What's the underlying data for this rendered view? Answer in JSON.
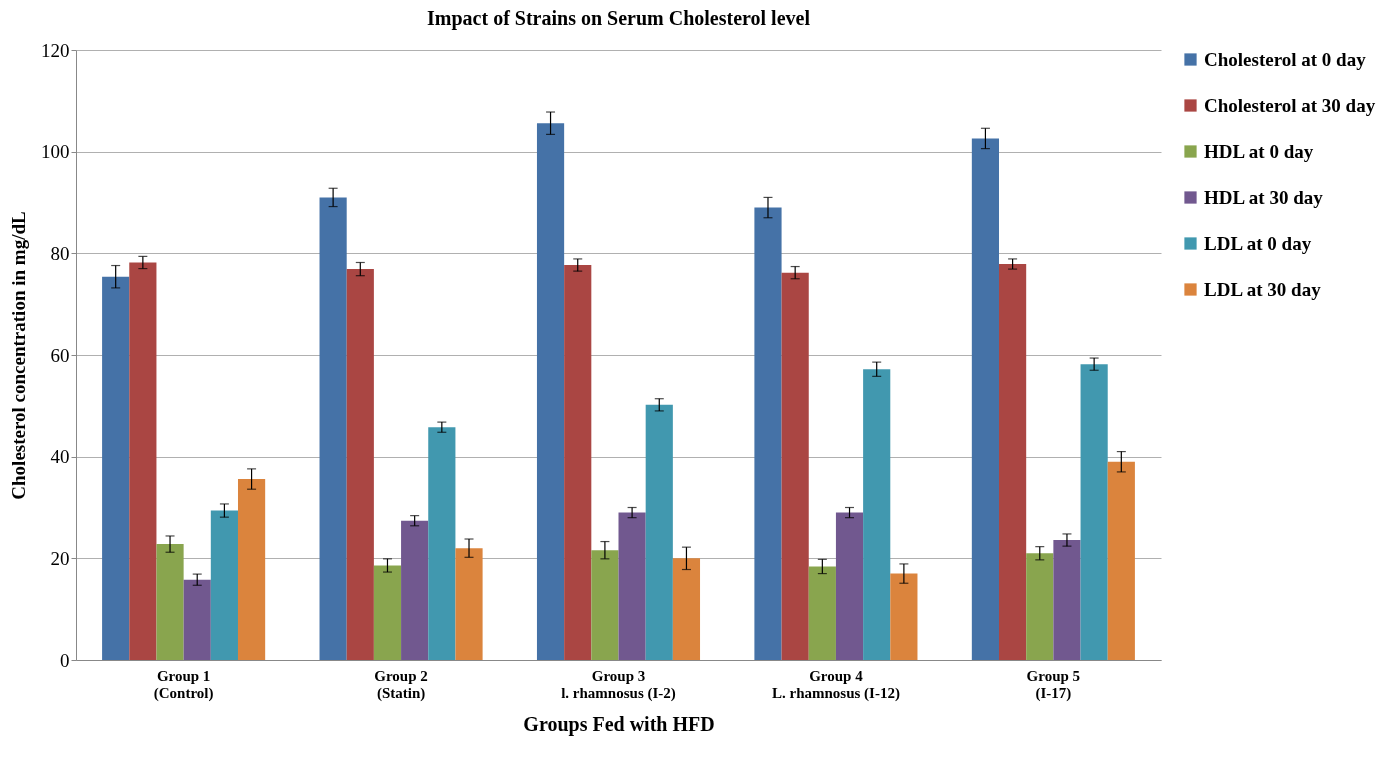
{
  "chart_data": {
    "type": "bar",
    "title": "Impact of Strains on Serum Cholesterol level",
    "xlabel": "Groups Fed with HFD",
    "ylabel": "Cholesterol concentration in mg/dL",
    "categories": [
      "Group 1\n(Control)",
      "Group 2\n(Statin)",
      "Group 3\nl. rhamnosus (I-2)",
      "Group 4\nL. rhamnosus  (I-12)",
      "Group 5\n(I-17)"
    ],
    "series": [
      {
        "name": "Cholesterol at 0 day",
        "color": "#4572a7",
        "values": [
          75.4,
          91.0,
          105.6,
          89.0,
          102.6
        ],
        "errors": [
          2.2,
          1.8,
          2.2,
          2.0,
          2.0
        ]
      },
      {
        "name": "Cholesterol at 30 day",
        "color": "#aa4643",
        "values": [
          78.2,
          76.9,
          77.7,
          76.2,
          77.9
        ],
        "errors": [
          1.2,
          1.3,
          1.2,
          1.2,
          1.0
        ]
      },
      {
        "name": "HDL at 0 day",
        "color": "#89a54e",
        "values": [
          22.8,
          18.6,
          21.6,
          18.4,
          21.0
        ],
        "errors": [
          1.6,
          1.3,
          1.7,
          1.4,
          1.3
        ]
      },
      {
        "name": "HDL  at 30 day",
        "color": "#71588f",
        "values": [
          15.8,
          27.4,
          29.0,
          29.0,
          23.6
        ],
        "errors": [
          1.1,
          1.0,
          1.0,
          1.0,
          1.2
        ]
      },
      {
        "name": "LDL at 0 day",
        "color": "#4198af",
        "values": [
          29.4,
          45.8,
          50.2,
          57.2,
          58.2
        ],
        "errors": [
          1.3,
          1.0,
          1.2,
          1.4,
          1.2
        ]
      },
      {
        "name": "LDL at 30 day",
        "color": "#db843d",
        "values": [
          35.6,
          22.0,
          20.0,
          17.0,
          39.0
        ],
        "errors": [
          2.0,
          1.8,
          2.2,
          1.9,
          2.0
        ]
      }
    ],
    "ylim": [
      0,
      120
    ],
    "yticks": [
      0,
      20,
      40,
      60,
      80,
      100,
      120
    ],
    "grid": "y",
    "legend": "right"
  }
}
